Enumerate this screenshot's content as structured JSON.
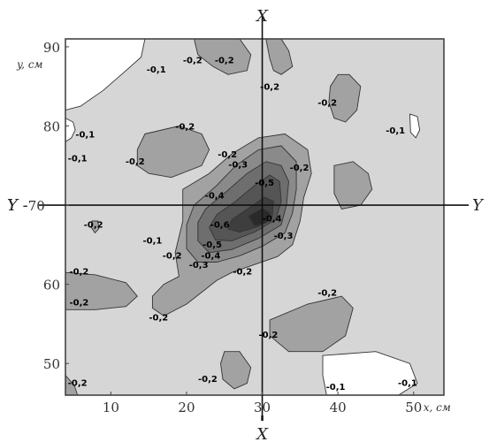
{
  "chart_data": {
    "type": "contour",
    "x_axis": {
      "label": "x, см",
      "range": [
        4,
        54
      ],
      "ticks": [
        10,
        20,
        30,
        40,
        50
      ],
      "tick_labels": [
        "10",
        "20",
        "30",
        "40",
        "50"
      ]
    },
    "y_axis": {
      "label": "y, см",
      "range": [
        46,
        91
      ],
      "ticks": [
        50,
        60,
        70,
        80,
        90
      ],
      "tick_labels": [
        "50",
        "60",
        "70",
        "80",
        "90"
      ]
    },
    "cross_lines": [
      {
        "axis": "x",
        "value": 30,
        "label": "X"
      },
      {
        "axis": "y",
        "value": 70,
        "label": "Y"
      }
    ],
    "y_line_prefix": "Y -",
    "fill_colors": {
      "background": "#d6d6d6",
      "level_-0.1": "#ffffff",
      "level_-0.2": "#a2a2a2",
      "level_-0.3": "#8a8a8a",
      "level_-0.4": "#6e6e6e",
      "level_-0.5": "#555555",
      "level_-0.6": "#3e3e3e",
      "core": "#2a2a2a"
    },
    "contour_labels": [
      {
        "text": "-0,1",
        "x": 16,
        "y": 87.2
      },
      {
        "text": "-0,2",
        "x": 20.8,
        "y": 88.4
      },
      {
        "text": "-0,2",
        "x": 25.0,
        "y": 88.4
      },
      {
        "text": "-0,2",
        "x": 31.0,
        "y": 85.0
      },
      {
        "text": "-0,2",
        "x": 38.6,
        "y": 83.0
      },
      {
        "text": "-0,1",
        "x": 6.6,
        "y": 79.0
      },
      {
        "text": "-0,2",
        "x": 19.8,
        "y": 80.0
      },
      {
        "text": "-0,1",
        "x": 47.6,
        "y": 79.5
      },
      {
        "text": "-0,1",
        "x": 5.6,
        "y": 76.0
      },
      {
        "text": "-0,2",
        "x": 13.2,
        "y": 75.6
      },
      {
        "text": "-0,2",
        "x": 25.4,
        "y": 76.5
      },
      {
        "text": "-0,3",
        "x": 26.8,
        "y": 75.2
      },
      {
        "text": "-0,2",
        "x": 34.9,
        "y": 74.8
      },
      {
        "text": "-0,5",
        "x": 30.3,
        "y": 72.9
      },
      {
        "text": "-0,4",
        "x": 23.7,
        "y": 71.3
      },
      {
        "text": "-0,2",
        "x": 7.7,
        "y": 67.6
      },
      {
        "text": "-0,6",
        "x": 24.4,
        "y": 67.6
      },
      {
        "text": "-0,4",
        "x": 31.3,
        "y": 68.4
      },
      {
        "text": "-0,3",
        "x": 32.8,
        "y": 66.2
      },
      {
        "text": "-0,1",
        "x": 15.5,
        "y": 65.6
      },
      {
        "text": "-0,5",
        "x": 23.4,
        "y": 65.1
      },
      {
        "text": "-0,2",
        "x": 18.1,
        "y": 63.7
      },
      {
        "text": "-0,4",
        "x": 23.2,
        "y": 63.7
      },
      {
        "text": "-0,3",
        "x": 21.6,
        "y": 62.5
      },
      {
        "text": "-0,2",
        "x": 5.8,
        "y": 61.7
      },
      {
        "text": "-0,2",
        "x": 27.4,
        "y": 61.7
      },
      {
        "text": "-0,2",
        "x": 38.6,
        "y": 59.0
      },
      {
        "text": "-0,2",
        "x": 5.8,
        "y": 57.8
      },
      {
        "text": "-0,2",
        "x": 16.3,
        "y": 55.9
      },
      {
        "text": "-0,2",
        "x": 30.8,
        "y": 53.7
      },
      {
        "text": "-0,2",
        "x": 5.6,
        "y": 47.6
      },
      {
        "text": "-0,2",
        "x": 22.8,
        "y": 48.1
      },
      {
        "text": "-0,1",
        "x": 39.7,
        "y": 47.1
      },
      {
        "text": "-0,1",
        "x": 49.2,
        "y": 47.6
      }
    ],
    "regions": [
      {
        "level": "-0.1",
        "points": [
          [
            4,
            91
          ],
          [
            14.5,
            91
          ],
          [
            14,
            88.7
          ],
          [
            12,
            87
          ],
          [
            9,
            84.5
          ],
          [
            6,
            82.5
          ],
          [
            4,
            82
          ]
        ]
      },
      {
        "level": "-0.1",
        "points": [
          [
            38,
            51
          ],
          [
            45,
            51.5
          ],
          [
            49.5,
            50
          ],
          [
            50.5,
            47.5
          ],
          [
            48,
            46
          ],
          [
            38.5,
            46
          ],
          [
            38,
            48.5
          ]
        ]
      },
      {
        "level": "-0.1",
        "points": [
          [
            49.5,
            81.5
          ],
          [
            50.5,
            81.2
          ],
          [
            50.8,
            79.5
          ],
          [
            50.3,
            78.5
          ],
          [
            49.6,
            79.2
          ]
        ]
      },
      {
        "level": "-0.1",
        "points": [
          [
            4,
            81
          ],
          [
            5,
            80.5
          ],
          [
            5.3,
            79.5
          ],
          [
            4.8,
            78.5
          ],
          [
            4,
            78
          ]
        ]
      },
      {
        "level": "-0.2",
        "points": [
          [
            21,
            91
          ],
          [
            21.5,
            89
          ],
          [
            23.5,
            87.5
          ],
          [
            25.5,
            86.5
          ],
          [
            28,
            87
          ],
          [
            28.5,
            89
          ],
          [
            27,
            91
          ]
        ]
      },
      {
        "level": "-0.2",
        "points": [
          [
            30.5,
            91
          ],
          [
            31,
            88.5
          ],
          [
            31.5,
            87
          ],
          [
            32.5,
            86.5
          ],
          [
            34,
            87.5
          ],
          [
            33.5,
            89.5
          ],
          [
            32.5,
            91
          ]
        ]
      },
      {
        "level": "-0.2",
        "points": [
          [
            40,
            86.5
          ],
          [
            41.5,
            86.5
          ],
          [
            43,
            85
          ],
          [
            42.5,
            82
          ],
          [
            41,
            80.5
          ],
          [
            39.5,
            81
          ],
          [
            38.8,
            83
          ],
          [
            39,
            85
          ]
        ]
      },
      {
        "level": "-0.2",
        "points": [
          [
            14.5,
            79
          ],
          [
            19,
            80
          ],
          [
            22,
            79
          ],
          [
            23,
            77
          ],
          [
            22,
            75
          ],
          [
            18,
            73.5
          ],
          [
            15,
            74
          ],
          [
            13.5,
            75
          ],
          [
            13.5,
            77
          ]
        ]
      },
      {
        "level": "-0.2",
        "points": [
          [
            39.5,
            75
          ],
          [
            42,
            75.5
          ],
          [
            44,
            74
          ],
          [
            44.5,
            72
          ],
          [
            43,
            70
          ],
          [
            40.5,
            69.5
          ],
          [
            39.5,
            71.5
          ]
        ]
      },
      {
        "level": "-0.2",
        "points": [
          [
            19.5,
            72
          ],
          [
            23,
            74
          ],
          [
            26,
            76.5
          ],
          [
            29.5,
            78.5
          ],
          [
            33,
            79
          ],
          [
            36,
            77
          ],
          [
            36.5,
            74
          ],
          [
            35.5,
            71
          ],
          [
            35,
            68
          ],
          [
            34,
            65
          ],
          [
            32,
            63.5
          ],
          [
            29,
            62.5
          ],
          [
            26,
            61.5
          ],
          [
            24,
            60.5
          ],
          [
            22,
            59
          ],
          [
            20,
            57.5
          ],
          [
            17,
            56
          ],
          [
            15.5,
            57
          ],
          [
            15.5,
            58.5
          ],
          [
            17,
            60
          ],
          [
            19,
            61
          ],
          [
            18.5,
            64
          ],
          [
            19.5,
            68
          ]
        ]
      },
      {
        "level": "-0.2",
        "points": [
          [
            4,
            61.5
          ],
          [
            8,
            61.2
          ],
          [
            12,
            60.2
          ],
          [
            13.5,
            58.5
          ],
          [
            12,
            57.2
          ],
          [
            8,
            56.8
          ],
          [
            4,
            56.8
          ]
        ]
      },
      {
        "level": "-0.2",
        "points": [
          [
            31,
            55.5
          ],
          [
            36,
            57.5
          ],
          [
            40.5,
            58.5
          ],
          [
            42,
            57
          ],
          [
            41,
            53.5
          ],
          [
            38,
            51.5
          ],
          [
            33.5,
            51.5
          ],
          [
            31,
            53.5
          ]
        ]
      },
      {
        "level": "-0.2",
        "points": [
          [
            25,
            51.5
          ],
          [
            27,
            51.5
          ],
          [
            28.5,
            49.5
          ],
          [
            28,
            47.5
          ],
          [
            26.3,
            46.8
          ],
          [
            24.8,
            48
          ],
          [
            24.5,
            50
          ]
        ]
      },
      {
        "level": "-0.2",
        "points": [
          [
            4,
            48.5
          ],
          [
            5.2,
            47.2
          ],
          [
            5.6,
            46
          ],
          [
            4,
            46
          ]
        ]
      },
      {
        "level": "-0.2",
        "points": [
          [
            7.5,
            68
          ],
          [
            8.3,
            68
          ],
          [
            8.4,
            67
          ],
          [
            7.9,
            66.5
          ],
          [
            7.4,
            67.2
          ]
        ]
      },
      {
        "level": "-0.3",
        "points": [
          [
            21,
            70
          ],
          [
            24,
            72.5
          ],
          [
            26.5,
            75
          ],
          [
            29.5,
            77
          ],
          [
            32.5,
            77.5
          ],
          [
            34.5,
            75.5
          ],
          [
            34.5,
            72
          ],
          [
            34,
            69
          ],
          [
            33,
            66.5
          ],
          [
            30,
            64.8
          ],
          [
            27,
            63.6
          ],
          [
            24,
            62.8
          ],
          [
            21.5,
            62.8
          ],
          [
            20,
            64.5
          ],
          [
            20,
            67.5
          ]
        ]
      },
      {
        "level": "-0.4",
        "points": [
          [
            22.5,
            69.5
          ],
          [
            25,
            71.5
          ],
          [
            28,
            74
          ],
          [
            30.5,
            75.5
          ],
          [
            32.5,
            75
          ],
          [
            33.5,
            73
          ],
          [
            33.2,
            70
          ],
          [
            32.5,
            67.5
          ],
          [
            29.5,
            65.8
          ],
          [
            26,
            64.4
          ],
          [
            23,
            64
          ],
          [
            21.5,
            65.5
          ],
          [
            21.5,
            67.8
          ]
        ]
      },
      {
        "level": "-0.5",
        "points": [
          [
            24,
            68.8
          ],
          [
            26.5,
            70.5
          ],
          [
            29,
            72.5
          ],
          [
            31,
            73.8
          ],
          [
            32.3,
            73
          ],
          [
            32.5,
            70.5
          ],
          [
            31.8,
            68.2
          ],
          [
            29,
            66.6
          ],
          [
            26,
            65.5
          ],
          [
            23.8,
            65.6
          ],
          [
            23,
            67.2
          ]
        ]
      },
      {
        "level": "-0.6",
        "points": [
          [
            26,
            68.2
          ],
          [
            28.5,
            69.8
          ],
          [
            30.3,
            71
          ],
          [
            31.5,
            70.5
          ],
          [
            31.3,
            68.5
          ],
          [
            29.5,
            67.3
          ],
          [
            27,
            66.6
          ],
          [
            25.5,
            67
          ]
        ]
      },
      {
        "level": "core",
        "points": [
          [
            28.2,
            68.6
          ],
          [
            30,
            69.6
          ],
          [
            31,
            69
          ],
          [
            30.6,
            67.8
          ],
          [
            29,
            67.4
          ]
        ]
      }
    ]
  }
}
